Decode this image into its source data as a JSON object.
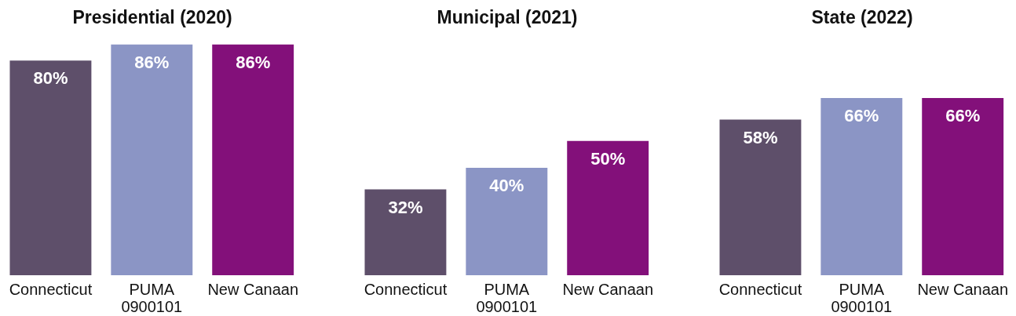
{
  "chart_data": [
    {
      "type": "bar",
      "title": "Presidential (2020)",
      "categories": [
        "Connecticut",
        "PUMA 0900101",
        "New Canaan"
      ],
      "values": [
        80,
        86,
        86
      ],
      "colors": [
        "#5e4f6a",
        "#8b95c5",
        "#83107a"
      ],
      "value_labels": [
        "80%",
        "86%",
        "86%"
      ],
      "tick_labels": "x"
    },
    {
      "type": "bar",
      "title": "Municipal (2021)",
      "categories": [
        "Connecticut",
        "PUMA 0900101",
        "New Canaan"
      ],
      "values": [
        32,
        40,
        50
      ],
      "colors": [
        "#5e4f6a",
        "#8b95c5",
        "#83107a"
      ],
      "value_labels": [
        "32%",
        "40%",
        "50%"
      ],
      "tick_labels": "x"
    },
    {
      "type": "bar",
      "title": "State (2022)",
      "categories": [
        "Connecticut",
        "PUMA 0900101",
        "New Canaan"
      ],
      "values": [
        58,
        66,
        66
      ],
      "colors": [
        "#5e4f6a",
        "#8b95c5",
        "#83107a"
      ],
      "value_labels": [
        "58%",
        "66%",
        "66%"
      ],
      "tick_labels": "x"
    }
  ]
}
